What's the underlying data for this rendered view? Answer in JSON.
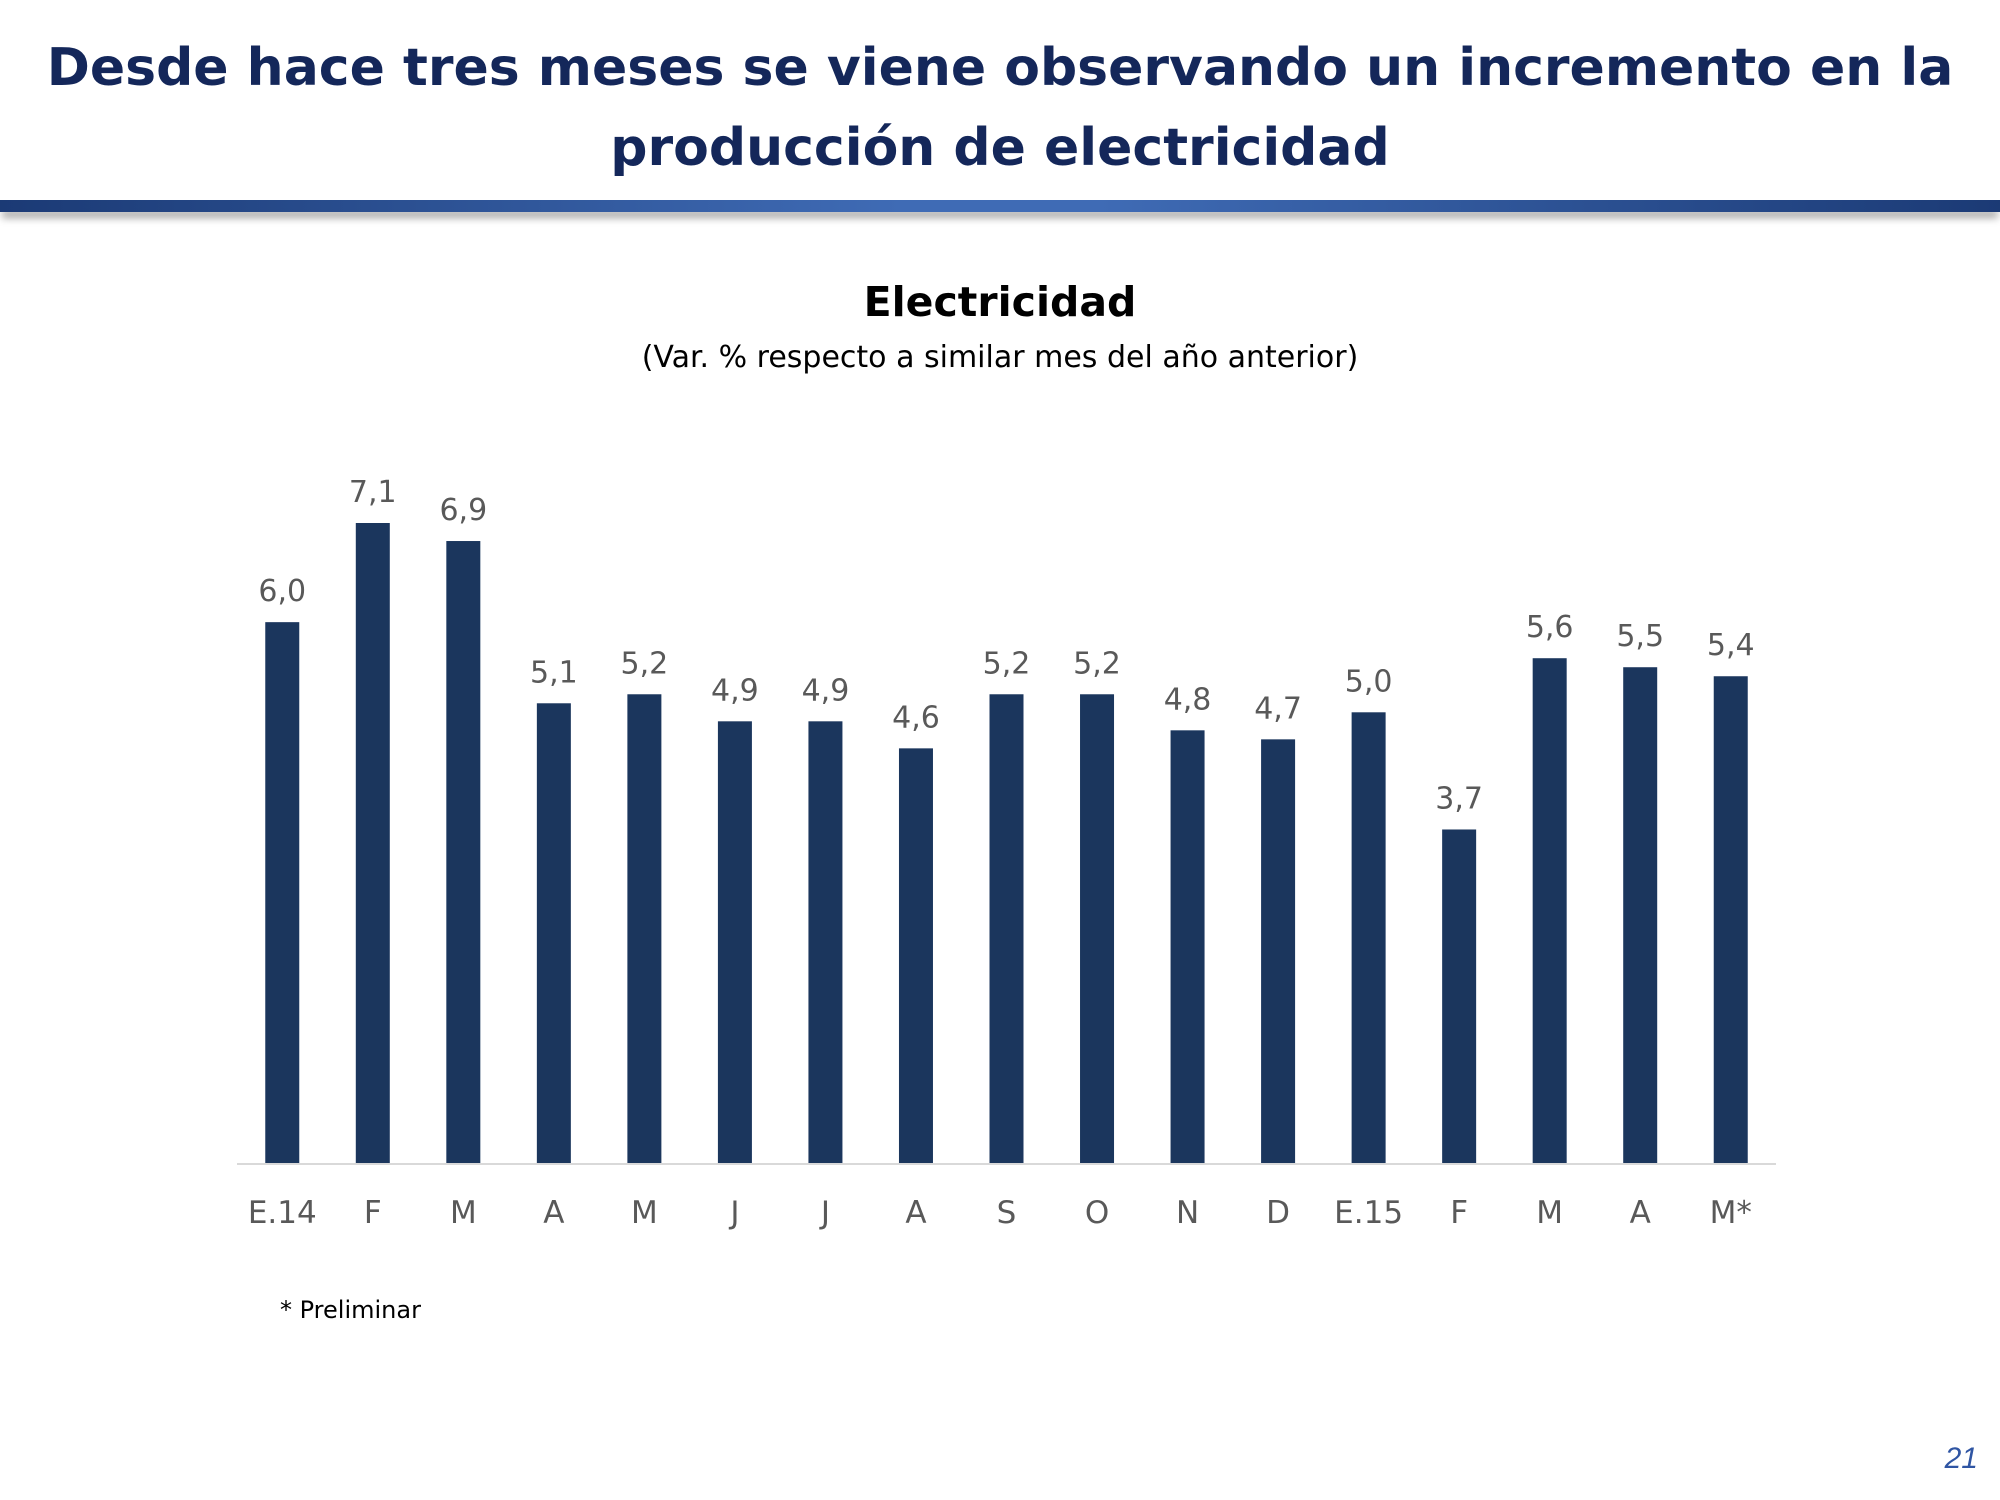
{
  "slide": {
    "title": "Desde hace tres meses se viene observando un incremento en la producción de electricidad",
    "footnote": "* Preliminar",
    "page_number": "21"
  },
  "colors": {
    "title": "#14275a",
    "bar": "#1b365d",
    "label": "#595959",
    "axis": "#d9d9d9"
  },
  "chart_data": {
    "type": "bar",
    "title": "Electricidad",
    "subtitle": "(Var. % respecto a similar mes del año anterior)",
    "categories": [
      "E.14",
      "F",
      "M",
      "A",
      "M",
      "J",
      "J",
      "A",
      "S",
      "O",
      "N",
      "D",
      "E.15",
      "F",
      "M",
      "A",
      "M*"
    ],
    "values": [
      6.0,
      7.1,
      6.9,
      5.1,
      5.2,
      4.9,
      4.9,
      4.6,
      5.2,
      5.2,
      4.8,
      4.7,
      5.0,
      3.7,
      5.6,
      5.5,
      5.4
    ],
    "value_labels": [
      "6,0",
      "7,1",
      "6,9",
      "5,1",
      "5,2",
      "4,9",
      "4,9",
      "4,6",
      "5,2",
      "5,2",
      "4,8",
      "4,7",
      "5,0",
      "3,7",
      "5,6",
      "5,5",
      "5,4"
    ],
    "ylim": [
      0,
      7.1
    ],
    "grid": false,
    "legend": "none"
  }
}
